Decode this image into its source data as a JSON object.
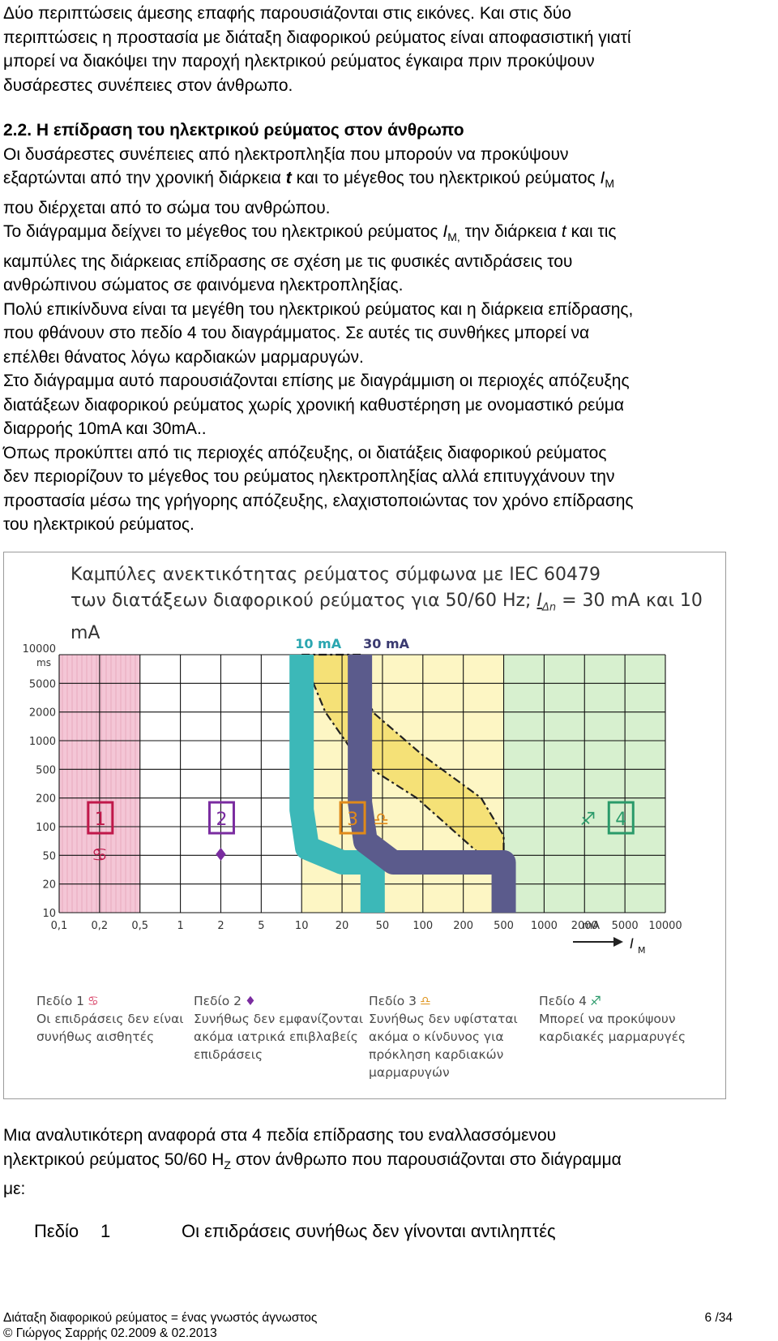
{
  "intro_lines": [
    "Δύο περιπτώσεις άμεσης επαφής παρουσιάζονται στις εικόνες. Και στις δύο",
    "περιπτώσεις η προστασία με διάταξη διαφορικού ρεύματος είναι αποφασιστική γιατί",
    "μπορεί να διακόψει την παροχή ηλεκτρικού ρεύματος έγκαιρα πριν προκύψουν",
    "δυσάρεστες συνέπειες στον άνθρωπο."
  ],
  "section_heading": "2.2. Η επίδραση του ηλεκτρικού ρεύματος στον άνθρωπο",
  "body_lines": [
    "Οι δυσάρεστες συνέπειες από ηλεκτροπληξία που μπορούν να προκύψουν",
    "εξαρτώνται από την χρονική διάρκεια t και το μέγεθος του ηλεκτρικού ρεύματος I",
    "που διέρχεται από το σώμα του ανθρώπου.",
    "Το διάγραμμα δείχνει το μέγεθος του ηλεκτρικού ρεύματος I",
    "καμπύλες της  διάρκειας επίδρασης σε σχέση με τις φυσικές αντιδράσεις του",
    "ανθρώπινου σώματος σε φαινόμενα ηλεκτροπληξίας.",
    "Πολύ επικίνδυνα είναι τα μεγέθη του ηλεκτρικού ρεύματος και η διάρκεια επίδρασης,",
    "που φθάνουν στο πεδίο 4 του διαγράμματος. Σε αυτές τις συνθήκες μπορεί να",
    "επέλθει θάνατος λόγω καρδιακών μαρμαρυγών.",
    "Στο διάγραμμα αυτό παρουσιάζονται επίσης με διαγράμμιση οι περιοχές απόζευξης",
    "διατάξεων διαφορικού  ρεύματος χωρίς χρονική καθυστέρηση  με ονομαστικό ρεύμα",
    "διαρροής 10mA και 30mA..",
    "Όπως προκύπτει  από τις περιοχές απόζευξης, οι διατάξεις διαφορικού ρεύματος",
    "δεν περιορίζουν το μέγεθος του ρεύματος ηλεκτροπληξίας αλλά επιτυγχάνουν την",
    "προστασία μέσω της γρήγορης απόζευξης, ελαχιστοποιώντας τον χρόνο επίδρασης",
    "του ηλεκτρικού ρεύματος."
  ],
  "body_inline": {
    "t": "t",
    "rest_line2": " και το μέγεθος του ηλεκτρικού ρεύματος ",
    "I": "I",
    "M": "M",
    "line4_prefix": "Το διάγραμμα δείχνει το μέγεθος του ηλεκτρικού ρεύματος ",
    "M_comma": "M,",
    "line4_mid": "  την διάρκεια ",
    "line4_end": " και τις",
    "line2_prefix": "εξαρτώνται από την χρονική διάρκεια "
  },
  "figure": {
    "title_line1": "Καμπύλες ανεκτικότητας ρεύματος σύμφωνα με IEC 60479",
    "title_line2_pre": "των διατάξεων διαφορικού ρεύματος για 50/60 Hz; ",
    "title_line2_sym": "I",
    "title_line2_sub": "Δn",
    "title_line2_post": " = 30 mA και 10 mA",
    "label_10ma": "10 mA",
    "label_30ma": "30 mA",
    "y_unit": "ms",
    "x_unit": "mA",
    "x_axis_symbol": "I",
    "x_axis_sub": "M",
    "colors": {
      "field1": "#f4c6d6",
      "field2": "#ffffff",
      "field3": "#fdf6c4",
      "field4": "#d7f0cf",
      "band10": "#3cb8b8",
      "band30": "#5b5b8c",
      "curve": "#f3dd6a"
    }
  },
  "chart_data": {
    "type": "area",
    "title": "Καμπύλες ανεκτικότητας ρεύματος σύμφωνα με IEC 60479",
    "xlabel": "I_M (mA)",
    "ylabel": "ms",
    "x_scale": "log",
    "y_scale": "log",
    "x_ticks": [
      "0,1",
      "0,2",
      "0,5",
      "1",
      "2",
      "5",
      "10",
      "20",
      "50",
      "100",
      "200",
      "500",
      "1000",
      "2000",
      "5000",
      "10000"
    ],
    "y_ticks": [
      "10000",
      "5000",
      "2000",
      "1000",
      "500",
      "200",
      "100",
      "50",
      "20",
      "10"
    ],
    "series": [
      {
        "name": "10 mA",
        "x": [
          10,
          10,
          10,
          11,
          20,
          40,
          40
        ],
        "y": [
          10000,
          500,
          150,
          60,
          40,
          40,
          10
        ]
      },
      {
        "name": "30 mA",
        "x": [
          30,
          30,
          30,
          34,
          60,
          500,
          500
        ],
        "y": [
          10000,
          700,
          180,
          70,
          40,
          40,
          10
        ]
      }
    ],
    "fields": [
      {
        "label": "1",
        "x_range": [
          0.1,
          0.5
        ]
      },
      {
        "label": "2",
        "x_range": [
          0.5,
          10
        ]
      },
      {
        "label": "3",
        "x_range": [
          10,
          500
        ]
      },
      {
        "label": "4",
        "x_range": [
          500,
          10000
        ]
      }
    ],
    "grid": true
  },
  "field_notes": [
    {
      "title": "Πεδίο 1",
      "symbol": "♋",
      "lines": [
        "Οι επιδράσεις δεν είναι",
        "συνήθως αισθητές"
      ]
    },
    {
      "title": "Πεδίο 2",
      "symbol": "♦",
      "lines": [
        "Συνήθως δεν εμφανίζονται",
        "ακόμα ιατρικά επιβλαβείς",
        "επιδράσεις"
      ]
    },
    {
      "title": "Πεδίο 3",
      "symbol": "♎",
      "lines": [
        "Συνήθως δεν υφίσταται",
        "ακόμα ο κίνδυνος για",
        "πρόκληση καρδιακών",
        "μαρμαρυγών"
      ]
    },
    {
      "title": "Πεδίο 4",
      "symbol": "♐",
      "lines": [
        "Μπορεί να προκύψουν",
        "καρδιακές μαρμαρυγές"
      ]
    }
  ],
  "after_lines": [
    "Μια αναλυτικότερη αναφορά στα 4 πεδία επίδρασης του εναλλασσόμενου",
    "ηλεκτρικού ρεύματος  50/60 H",
    "με:"
  ],
  "after_inline": {
    "hz_sub": "Z",
    "line2_rest": " στον άνθρωπο που παρουσιάζονται στο διάγραμμα"
  },
  "field_row": {
    "label": "Πεδίο",
    "number": "1",
    "text": "Οι επιδράσεις συνήθως δεν γίνονται αντιληπτές"
  },
  "footer": {
    "line1": "Διάταξη διαφορικού ρεύματος = ένας γνωστός άγνωστος",
    "line2": "© Γιώργος Σαρρής 02.2009 & 02.2013",
    "page": "6 /34"
  }
}
